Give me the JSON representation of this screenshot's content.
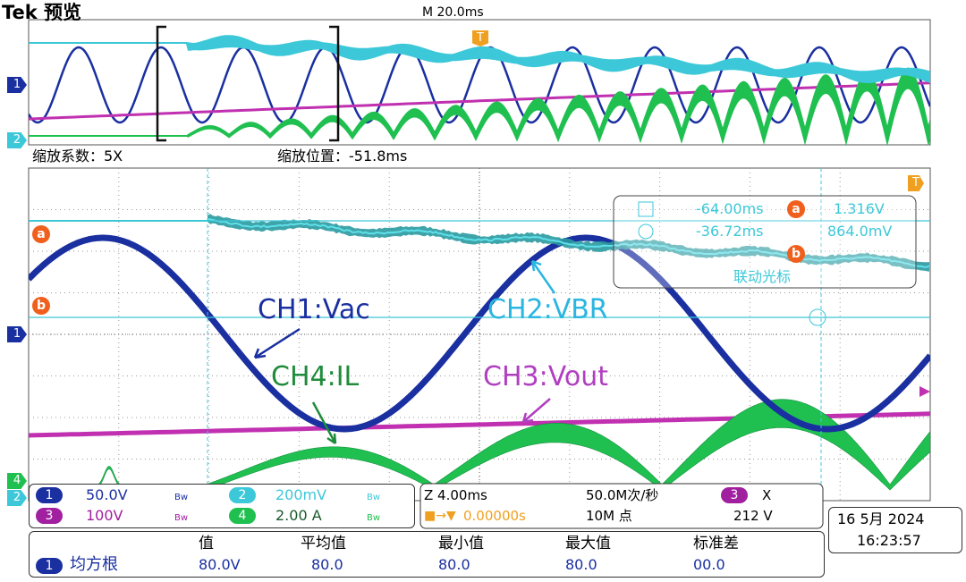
{
  "header": {
    "brand": "Tek 预览",
    "timebase": "M 20.0ms"
  },
  "markers": {
    "ch1": "1",
    "ch2": "2",
    "ch4": "4",
    "cursor_a": "a",
    "cursor_b": "b",
    "trigger": "T"
  },
  "zoom": {
    "factor": "缩放系数：5X",
    "position": "缩放位置：-51.8ms"
  },
  "cursors": {
    "a_time": "-64.00ms",
    "a_value": "1.316V",
    "b_time": "-36.72ms",
    "b_value": "864.0mV",
    "link": "联动光标"
  },
  "annotations": [
    "CH1:Vac",
    "CH2:VBR",
    "CH4:IL",
    "CH3:Vout"
  ],
  "channels": [
    {
      "id": "1",
      "scale": "50.0V",
      "bw": "Bw"
    },
    {
      "id": "2",
      "scale": "200mV",
      "bw": "Bw"
    },
    {
      "id": "3",
      "scale": "100V",
      "bw": "Bw"
    },
    {
      "id": "4",
      "scale": "2.00 A",
      "bw": "Bw"
    }
  ],
  "acquisition": {
    "zoom_scale": "Z 4.00ms",
    "rate": "50.0M次/秒",
    "source": "3",
    "mode": "X",
    "trigger_pos": "0.00000s",
    "points": "10M 点",
    "level": "212 V"
  },
  "datetime": {
    "date": "16 5月 2024",
    "time": "16:23:57"
  },
  "measurements": {
    "headers": [
      "值",
      "平均值",
      "最小值",
      "最大值",
      "标准差"
    ],
    "source": "1",
    "type": "均方根",
    "values": [
      "80.0V",
      "80.0",
      "80.0",
      "80.0",
      "00.0"
    ]
  }
}
